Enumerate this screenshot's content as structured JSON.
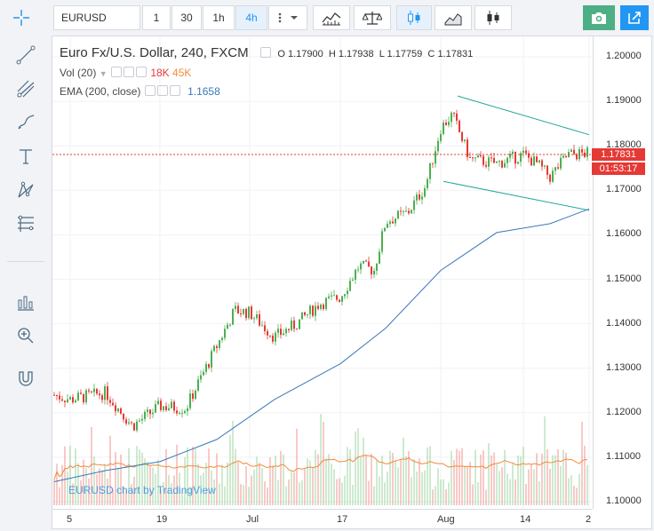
{
  "toolbar": {
    "symbol": "EURUSD",
    "intervals": [
      "1",
      "30",
      "1h",
      "4h"
    ],
    "active_interval": "4h",
    "snapshot_icon": "camera-icon",
    "popout_icon": "popout-arrow-icon"
  },
  "sidebar": {
    "tools": [
      "crosshair-icon",
      "trend-line-icon",
      "pitchfork-icon",
      "brush-icon",
      "text-tool-icon",
      "pattern-icon",
      "fib-icon",
      "measure-icon",
      "zoom-icon",
      "magnet-icon"
    ]
  },
  "legend": {
    "title": "Euro Fx/U.S. Dollar, 240, FXCM",
    "o_label": "O",
    "o_value": "1.17900",
    "h_label": "H",
    "h_value": "1.17938",
    "l_label": "L",
    "l_value": "1.17759",
    "c_label": "C",
    "c_value": "1.17831",
    "vol_label": "Vol (20)",
    "vol_value_1": "18K",
    "vol_value_2": "45K",
    "ema_label": "EMA (200, close)",
    "ema_value": "1.1658"
  },
  "price_axis": {
    "ticks": [
      "1.20000",
      "1.19000",
      "1.18000",
      "1.17000",
      "1.16000",
      "1.15000",
      "1.14000",
      "1.13000",
      "1.12000",
      "1.11000",
      "1.10000"
    ],
    "last_price": "1.17831",
    "countdown": "01:53:17"
  },
  "time_axis": {
    "ticks": [
      "5",
      "19",
      "Jul",
      "17",
      "Aug",
      "14",
      "2"
    ]
  },
  "watermark": "EURUSD chart by TradingView",
  "colors": {
    "up": "#4caf50",
    "down": "#e53935",
    "ema": "#3a78b7",
    "channel": "#26a69a",
    "vol_ma": "#f28a3b",
    "accent": "#2196f3",
    "snapshot_bg": "#4caf85"
  },
  "chart_data": {
    "type": "candlestick",
    "symbol": "EURUSD",
    "timeframe": "240",
    "ylim": [
      1.1,
      1.2
    ],
    "anchors": [
      {
        "x": "5",
        "close": 1.123
      },
      {
        "x": "19",
        "close": 1.1215
      },
      {
        "x": "Jul",
        "close": 1.1425
      },
      {
        "x": "17",
        "close": 1.146
      },
      {
        "x": "Aug",
        "close": 1.184
      },
      {
        "x": "14",
        "close": 1.178
      },
      {
        "x": "2",
        "close": 1.17831
      }
    ],
    "last": {
      "open": 1.179,
      "high": 1.17938,
      "low": 1.17759,
      "close": 1.17831
    },
    "ema_200_last": 1.1658
  }
}
